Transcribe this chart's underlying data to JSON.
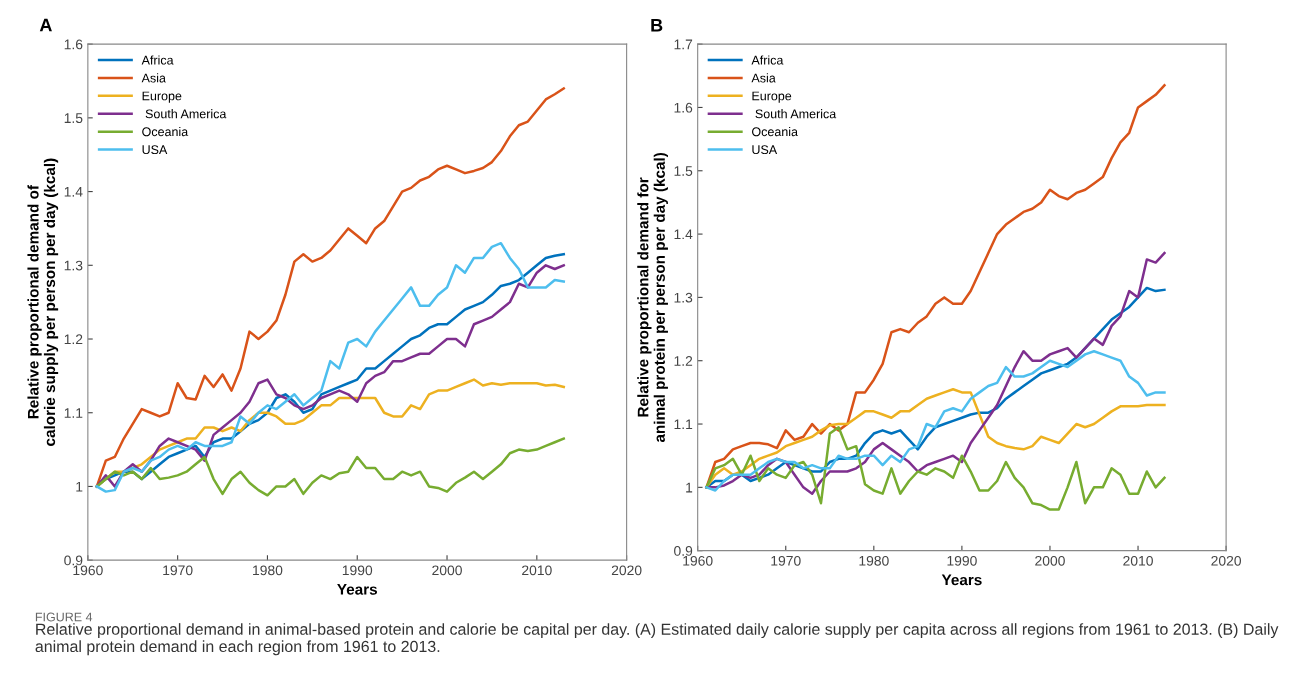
{
  "chart_data": [
    {
      "type": "line",
      "title": "A",
      "xlabel": "Years",
      "ylabel": "Relative proportional demand of\ncalorie supply per person per day (kcal)",
      "xlim": [
        1960,
        2020
      ],
      "xticks": [
        1960,
        1970,
        1980,
        1990,
        2000,
        2010,
        2020
      ],
      "ylim": [
        0.9,
        1.6
      ],
      "yticks": [
        0.9,
        1,
        1.1,
        1.2,
        1.3,
        1.4,
        1.5,
        1.6
      ],
      "grid": false,
      "legend": "top left",
      "marker": "none",
      "line_style": "solid",
      "x": [
        1961,
        1962,
        1963,
        1964,
        1965,
        1966,
        1967,
        1968,
        1969,
        1970,
        1971,
        1972,
        1973,
        1974,
        1975,
        1976,
        1977,
        1978,
        1979,
        1980,
        1981,
        1982,
        1983,
        1984,
        1985,
        1986,
        1987,
        1988,
        1989,
        1990,
        1991,
        1992,
        1993,
        1994,
        1995,
        1996,
        1997,
        1998,
        1999,
        2000,
        2001,
        2002,
        2003,
        2004,
        2005,
        2006,
        2007,
        2008,
        2009,
        2010,
        2011,
        2012,
        2013
      ],
      "series": [
        {
          "name": "Africa",
          "color": "#0072bd",
          "values": [
            1.0,
            1.01,
            1.015,
            1.02,
            1.02,
            1.01,
            1.02,
            1.03,
            1.04,
            1.045,
            1.05,
            1.055,
            1.04,
            1.06,
            1.065,
            1.065,
            1.075,
            1.085,
            1.09,
            1.1,
            1.12,
            1.125,
            1.115,
            1.1,
            1.105,
            1.125,
            1.13,
            1.135,
            1.14,
            1.145,
            1.16,
            1.16,
            1.17,
            1.18,
            1.19,
            1.2,
            1.205,
            1.215,
            1.22,
            1.22,
            1.23,
            1.24,
            1.245,
            1.25,
            1.26,
            1.272,
            1.275,
            1.28,
            1.29,
            1.3,
            1.31,
            1.313,
            1.315
          ]
        },
        {
          "name": "Asia",
          "color": "#d95319",
          "values": [
            1.0,
            1.035,
            1.04,
            1.065,
            1.085,
            1.105,
            1.1,
            1.095,
            1.1,
            1.14,
            1.12,
            1.118,
            1.15,
            1.135,
            1.152,
            1.13,
            1.16,
            1.21,
            1.2,
            1.21,
            1.225,
            1.26,
            1.305,
            1.315,
            1.305,
            1.31,
            1.32,
            1.335,
            1.35,
            1.34,
            1.33,
            1.35,
            1.36,
            1.38,
            1.4,
            1.405,
            1.415,
            1.42,
            1.43,
            1.435,
            1.43,
            1.425,
            1.428,
            1.432,
            1.44,
            1.455,
            1.475,
            1.49,
            1.495,
            1.51,
            1.525,
            1.532,
            1.54
          ]
        },
        {
          "name": "Europe",
          "color": "#edb120",
          "values": [
            1.0,
            1.01,
            1.02,
            1.02,
            1.025,
            1.03,
            1.04,
            1.05,
            1.055,
            1.06,
            1.065,
            1.065,
            1.08,
            1.08,
            1.075,
            1.08,
            1.075,
            1.09,
            1.1,
            1.1,
            1.095,
            1.085,
            1.085,
            1.09,
            1.1,
            1.11,
            1.11,
            1.12,
            1.12,
            1.12,
            1.12,
            1.12,
            1.1,
            1.095,
            1.095,
            1.11,
            1.105,
            1.125,
            1.13,
            1.13,
            1.135,
            1.14,
            1.145,
            1.137,
            1.14,
            1.138,
            1.14,
            1.14,
            1.14,
            1.14,
            1.137,
            1.138,
            1.135
          ]
        },
        {
          "name": " South America",
          "color": "#7e2f8e",
          "values": [
            1.0,
            1.015,
            1.0,
            1.02,
            1.03,
            1.02,
            1.035,
            1.055,
            1.065,
            1.06,
            1.055,
            1.05,
            1.035,
            1.07,
            1.08,
            1.09,
            1.1,
            1.115,
            1.14,
            1.145,
            1.125,
            1.12,
            1.11,
            1.105,
            1.11,
            1.12,
            1.125,
            1.13,
            1.125,
            1.115,
            1.14,
            1.15,
            1.155,
            1.17,
            1.17,
            1.175,
            1.18,
            1.18,
            1.19,
            1.2,
            1.2,
            1.19,
            1.22,
            1.225,
            1.23,
            1.24,
            1.25,
            1.275,
            1.27,
            1.29,
            1.3,
            1.295,
            1.3
          ]
        },
        {
          "name": "Oceania",
          "color": "#77ac30",
          "values": [
            1.0,
            1.01,
            1.02,
            1.015,
            1.02,
            1.01,
            1.025,
            1.01,
            1.012,
            1.015,
            1.02,
            1.03,
            1.04,
            1.01,
            0.99,
            1.01,
            1.02,
            1.005,
            0.995,
            0.988,
            1.0,
            1.0,
            1.01,
            0.99,
            1.005,
            1.015,
            1.01,
            1.018,
            1.02,
            1.04,
            1.025,
            1.025,
            1.01,
            1.01,
            1.02,
            1.015,
            1.02,
            1.0,
            0.998,
            0.993,
            1.005,
            1.012,
            1.02,
            1.01,
            1.02,
            1.03,
            1.045,
            1.05,
            1.048,
            1.05,
            1.055,
            1.06,
            1.065
          ]
        },
        {
          "name": "USA",
          "color": "#4dbeee",
          "values": [
            1.0,
            0.993,
            0.995,
            1.02,
            1.025,
            1.02,
            1.035,
            1.04,
            1.05,
            1.055,
            1.05,
            1.06,
            1.055,
            1.055,
            1.055,
            1.06,
            1.095,
            1.085,
            1.1,
            1.11,
            1.105,
            1.115,
            1.125,
            1.11,
            1.12,
            1.13,
            1.17,
            1.16,
            1.195,
            1.2,
            1.19,
            1.21,
            1.225,
            1.24,
            1.255,
            1.27,
            1.245,
            1.245,
            1.26,
            1.27,
            1.3,
            1.29,
            1.31,
            1.31,
            1.325,
            1.33,
            1.31,
            1.295,
            1.27,
            1.27,
            1.27,
            1.28,
            1.278
          ]
        }
      ],
      "annotations": [
        "FIGURE 4",
        "Relative proportional demand in animal-based protein and calorie be capital per day. (A) Estimated daily calorie supply per capita across all regions from 1961 to 2013. (B) Daily animal protein demand in each region from 1961 to 2013."
      ]
    },
    {
      "type": "line",
      "title": "B",
      "xlabel": "Years",
      "ylabel": "Relative proportional demand for\nanimal protein per person per day (kcal)",
      "xlim": [
        1960,
        2020
      ],
      "xticks": [
        1960,
        1970,
        1980,
        1990,
        2000,
        2010,
        2020
      ],
      "ylim": [
        0.9,
        1.7
      ],
      "yticks": [
        0.9,
        1,
        1.1,
        1.2,
        1.3,
        1.4,
        1.5,
        1.6,
        1.7
      ],
      "grid": false,
      "legend": "top left",
      "marker": "none",
      "line_style": "solid",
      "x": [
        1961,
        1962,
        1963,
        1964,
        1965,
        1966,
        1967,
        1968,
        1969,
        1970,
        1971,
        1972,
        1973,
        1974,
        1975,
        1976,
        1977,
        1978,
        1979,
        1980,
        1981,
        1982,
        1983,
        1984,
        1985,
        1986,
        1987,
        1988,
        1989,
        1990,
        1991,
        1992,
        1993,
        1994,
        1995,
        1996,
        1997,
        1998,
        1999,
        2000,
        2001,
        2002,
        2003,
        2004,
        2005,
        2006,
        2007,
        2008,
        2009,
        2010,
        2011,
        2012,
        2013
      ],
      "series": [
        {
          "name": "Africa",
          "color": "#0072bd",
          "values": [
            1.0,
            1.01,
            1.01,
            1.02,
            1.02,
            1.01,
            1.015,
            1.02,
            1.03,
            1.04,
            1.035,
            1.03,
            1.025,
            1.025,
            1.04,
            1.045,
            1.045,
            1.05,
            1.07,
            1.085,
            1.09,
            1.085,
            1.09,
            1.075,
            1.06,
            1.08,
            1.095,
            1.1,
            1.105,
            1.11,
            1.115,
            1.118,
            1.118,
            1.125,
            1.14,
            1.15,
            1.16,
            1.17,
            1.18,
            1.185,
            1.19,
            1.195,
            1.205,
            1.22,
            1.235,
            1.25,
            1.265,
            1.275,
            1.285,
            1.3,
            1.315,
            1.31,
            1.312
          ]
        },
        {
          "name": "Asia",
          "color": "#d95319",
          "values": [
            1.0,
            1.04,
            1.045,
            1.06,
            1.065,
            1.07,
            1.07,
            1.068,
            1.062,
            1.09,
            1.075,
            1.08,
            1.1,
            1.085,
            1.1,
            1.09,
            1.1,
            1.15,
            1.15,
            1.17,
            1.195,
            1.245,
            1.25,
            1.245,
            1.26,
            1.27,
            1.29,
            1.3,
            1.29,
            1.29,
            1.31,
            1.34,
            1.37,
            1.4,
            1.415,
            1.425,
            1.435,
            1.44,
            1.45,
            1.47,
            1.46,
            1.455,
            1.465,
            1.47,
            1.48,
            1.49,
            1.52,
            1.545,
            1.56,
            1.6,
            1.61,
            1.62,
            1.635
          ]
        },
        {
          "name": "Europe",
          "color": "#edb120",
          "values": [
            1.0,
            1.02,
            1.03,
            1.02,
            1.025,
            1.035,
            1.045,
            1.05,
            1.055,
            1.065,
            1.07,
            1.075,
            1.08,
            1.09,
            1.098,
            1.1,
            1.1,
            1.11,
            1.12,
            1.12,
            1.115,
            1.11,
            1.12,
            1.12,
            1.13,
            1.14,
            1.145,
            1.15,
            1.155,
            1.15,
            1.15,
            1.115,
            1.08,
            1.07,
            1.065,
            1.062,
            1.06,
            1.065,
            1.08,
            1.075,
            1.07,
            1.085,
            1.1,
            1.095,
            1.1,
            1.11,
            1.12,
            1.128,
            1.128,
            1.128,
            1.13,
            1.13,
            1.13
          ]
        },
        {
          "name": " South America",
          "color": "#7e2f8e",
          "values": [
            1.0,
            1.0,
            1.003,
            1.01,
            1.02,
            1.015,
            1.02,
            1.035,
            1.045,
            1.04,
            1.02,
            1.0,
            0.99,
            1.01,
            1.025,
            1.025,
            1.025,
            1.03,
            1.04,
            1.06,
            1.07,
            1.06,
            1.05,
            1.04,
            1.025,
            1.035,
            1.04,
            1.045,
            1.05,
            1.04,
            1.07,
            1.09,
            1.11,
            1.13,
            1.16,
            1.19,
            1.215,
            1.2,
            1.2,
            1.21,
            1.215,
            1.22,
            1.205,
            1.22,
            1.235,
            1.225,
            1.255,
            1.27,
            1.31,
            1.3,
            1.36,
            1.355,
            1.37
          ]
        },
        {
          "name": "Oceania",
          "color": "#77ac30",
          "values": [
            1.0,
            1.03,
            1.035,
            1.045,
            1.02,
            1.05,
            1.01,
            1.03,
            1.02,
            1.015,
            1.035,
            1.04,
            1.02,
            0.975,
            1.085,
            1.095,
            1.06,
            1.065,
            1.005,
            0.995,
            0.99,
            1.03,
            0.99,
            1.01,
            1.025,
            1.02,
            1.03,
            1.025,
            1.015,
            1.05,
            1.025,
            0.995,
            0.995,
            1.01,
            1.04,
            1.015,
            1.0,
            0.975,
            0.972,
            0.965,
            0.965,
            1.0,
            1.04,
            0.975,
            1.0,
            1.0,
            1.03,
            1.02,
            0.99,
            0.99,
            1.025,
            1.0,
            1.015
          ]
        },
        {
          "name": "USA",
          "color": "#4dbeee",
          "values": [
            1.0,
            0.995,
            1.01,
            1.02,
            1.02,
            1.02,
            1.03,
            1.04,
            1.045,
            1.04,
            1.04,
            1.03,
            1.035,
            1.03,
            1.03,
            1.05,
            1.045,
            1.045,
            1.05,
            1.05,
            1.035,
            1.05,
            1.04,
            1.06,
            1.065,
            1.1,
            1.095,
            1.12,
            1.125,
            1.12,
            1.14,
            1.15,
            1.16,
            1.165,
            1.19,
            1.175,
            1.175,
            1.18,
            1.19,
            1.2,
            1.195,
            1.19,
            1.2,
            1.21,
            1.215,
            1.21,
            1.205,
            1.2,
            1.175,
            1.165,
            1.145,
            1.15,
            1.15
          ]
        }
      ]
    }
  ]
}
